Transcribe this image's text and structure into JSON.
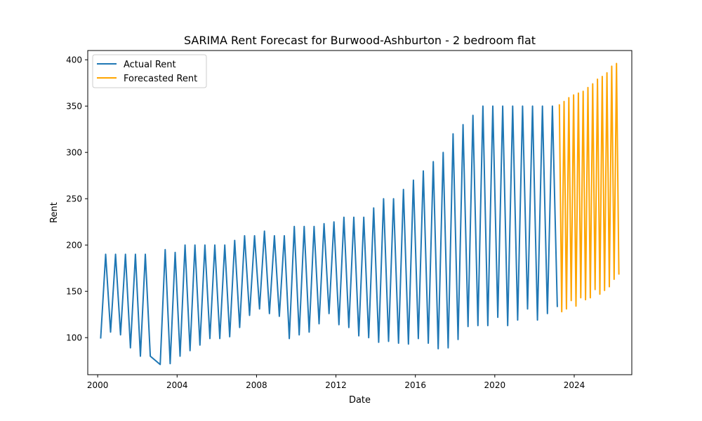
{
  "chart_data": {
    "type": "line",
    "title": "SARIMA Rent Forecast for Burwood-Ashburton - 2 bedroom flat",
    "xlabel": "Date",
    "ylabel": "Rent",
    "xlim": [
      1999.5,
      2026.9
    ],
    "ylim": [
      60,
      410
    ],
    "xticks": [
      2000,
      2004,
      2008,
      2012,
      2016,
      2020,
      2024
    ],
    "yticks": [
      100,
      150,
      200,
      250,
      300,
      350,
      400
    ],
    "grid": false,
    "legend_position": "upper-left",
    "series": [
      {
        "name": "Actual Rent",
        "color": "#1f77b4",
        "x": [
          2000.15,
          2000.4,
          2000.65,
          2000.9,
          2001.15,
          2001.4,
          2001.65,
          2001.9,
          2002.15,
          2002.4,
          2002.65,
          2003.15,
          2003.4,
          2003.65,
          2003.9,
          2004.15,
          2004.4,
          2004.65,
          2004.9,
          2005.15,
          2005.4,
          2005.65,
          2005.9,
          2006.15,
          2006.4,
          2006.65,
          2006.9,
          2007.15,
          2007.4,
          2007.65,
          2007.9,
          2008.15,
          2008.4,
          2008.65,
          2008.9,
          2009.15,
          2009.4,
          2009.65,
          2009.9,
          2010.15,
          2010.4,
          2010.65,
          2010.9,
          2011.15,
          2011.4,
          2011.65,
          2011.9,
          2012.15,
          2012.4,
          2012.65,
          2012.9,
          2013.15,
          2013.4,
          2013.65,
          2013.9,
          2014.15,
          2014.4,
          2014.65,
          2014.9,
          2015.15,
          2015.4,
          2015.65,
          2015.9,
          2016.15,
          2016.4,
          2016.65,
          2016.9,
          2017.15,
          2017.4,
          2017.65,
          2017.9,
          2018.15,
          2018.4,
          2018.65,
          2018.9,
          2019.15,
          2019.4,
          2019.65,
          2019.9,
          2020.15,
          2020.4,
          2020.65,
          2020.9,
          2021.15,
          2021.4,
          2021.65,
          2021.9,
          2022.15,
          2022.4,
          2022.65,
          2022.9,
          2023.15
        ],
        "values": [
          99,
          190,
          106,
          190,
          103,
          190,
          89,
          190,
          80,
          190,
          80,
          71,
          195,
          72,
          192,
          80,
          200,
          86,
          200,
          92,
          200,
          99,
          200,
          99,
          200,
          101,
          205,
          111,
          210,
          124,
          210,
          131,
          215,
          126,
          210,
          123,
          210,
          99,
          220,
          103,
          220,
          106,
          220,
          115,
          223,
          126,
          225,
          114,
          230,
          111,
          230,
          102,
          230,
          100,
          240,
          95,
          250,
          96,
          250,
          94,
          260,
          93,
          270,
          99,
          280,
          94,
          290,
          88,
          300,
          89,
          320,
          98,
          330,
          112,
          340,
          113,
          350,
          113,
          350,
          122,
          350,
          113,
          350,
          119,
          350,
          131,
          350,
          119,
          350,
          126,
          350,
          133
        ]
      },
      {
        "name": "Forecasted Rent",
        "color": "#ffa500",
        "x": [
          2023.25,
          2023.37,
          2023.49,
          2023.61,
          2023.73,
          2023.85,
          2023.97,
          2024.09,
          2024.21,
          2024.33,
          2024.45,
          2024.57,
          2024.69,
          2024.81,
          2024.93,
          2025.05,
          2025.17,
          2025.29,
          2025.41,
          2025.53,
          2025.65,
          2025.77,
          2025.89,
          2026.01,
          2026.13,
          2026.25
        ],
        "values": [
          352,
          128,
          355,
          131,
          359,
          140,
          362,
          134,
          364,
          143,
          366,
          141,
          370,
          143,
          374,
          152,
          379,
          147,
          382,
          151,
          386,
          155,
          393,
          163,
          396,
          168
        ]
      }
    ]
  }
}
